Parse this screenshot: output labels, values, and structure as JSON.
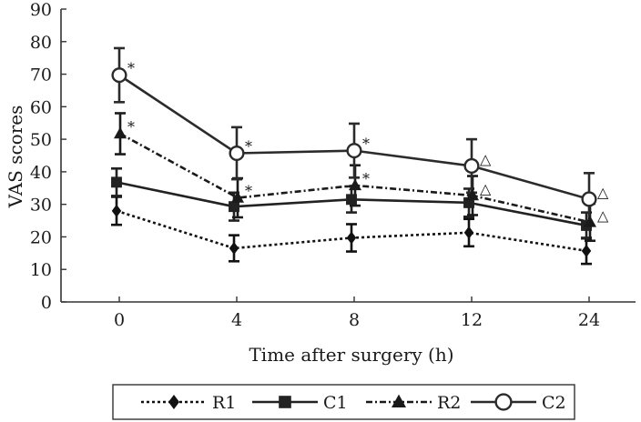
{
  "chart_data": {
    "type": "line",
    "title": "",
    "xlabel": "Time after surgery (h)",
    "ylabel": "VAS scores",
    "categories": [
      "0",
      "4",
      "8",
      "12",
      "24"
    ],
    "ylim": [
      0,
      90
    ],
    "yticks": [
      0,
      10,
      20,
      30,
      40,
      50,
      60,
      70,
      80,
      90
    ],
    "grid": false,
    "legend_position": "bottom",
    "series": [
      {
        "name": "R1",
        "line_style": "dotted",
        "marker": "diamond",
        "values": [
          28,
          16.5,
          19.7,
          21.3,
          15.7
        ],
        "errors": [
          4.3,
          4.0,
          4.2,
          4.2,
          4.0
        ]
      },
      {
        "name": "C1",
        "line_style": "solid",
        "marker": "square",
        "values": [
          36.8,
          29.3,
          31.5,
          30.5,
          23.5
        ],
        "errors": [
          4.2,
          4.3,
          4.0,
          4.3,
          4.0
        ]
      },
      {
        "name": "R2",
        "line_style": "dash-dot",
        "marker": "triangle",
        "values": [
          51.7,
          32.0,
          35.8,
          32.7,
          24.5
        ],
        "errors": [
          6.3,
          6.0,
          6.2,
          6.0,
          5.7
        ]
      },
      {
        "name": "C2",
        "line_style": "solid",
        "marker": "open-circle",
        "values": [
          69.7,
          45.7,
          46.5,
          41.8,
          31.6
        ],
        "errors": [
          8.3,
          8.0,
          8.3,
          8.2,
          8.0
        ]
      }
    ],
    "annotations": [
      {
        "series": "C2",
        "index": 0,
        "text": "*"
      },
      {
        "series": "C2",
        "index": 1,
        "text": "*"
      },
      {
        "series": "C2",
        "index": 2,
        "text": "*"
      },
      {
        "series": "C2",
        "index": 3,
        "text": "△"
      },
      {
        "series": "C2",
        "index": 4,
        "text": "△"
      },
      {
        "series": "R2",
        "index": 0,
        "text": "*"
      },
      {
        "series": "R2",
        "index": 1,
        "text": "*"
      },
      {
        "series": "R2",
        "index": 2,
        "text": "*"
      },
      {
        "series": "R2",
        "index": 3,
        "text": "△"
      },
      {
        "series": "R2",
        "index": 4,
        "text": "△"
      }
    ],
    "colors": {
      "R1": "#111111",
      "C1": "#222222",
      "R2": "#1a1a1a",
      "C2": "#2b2b2b",
      "axis": "#333333"
    }
  }
}
